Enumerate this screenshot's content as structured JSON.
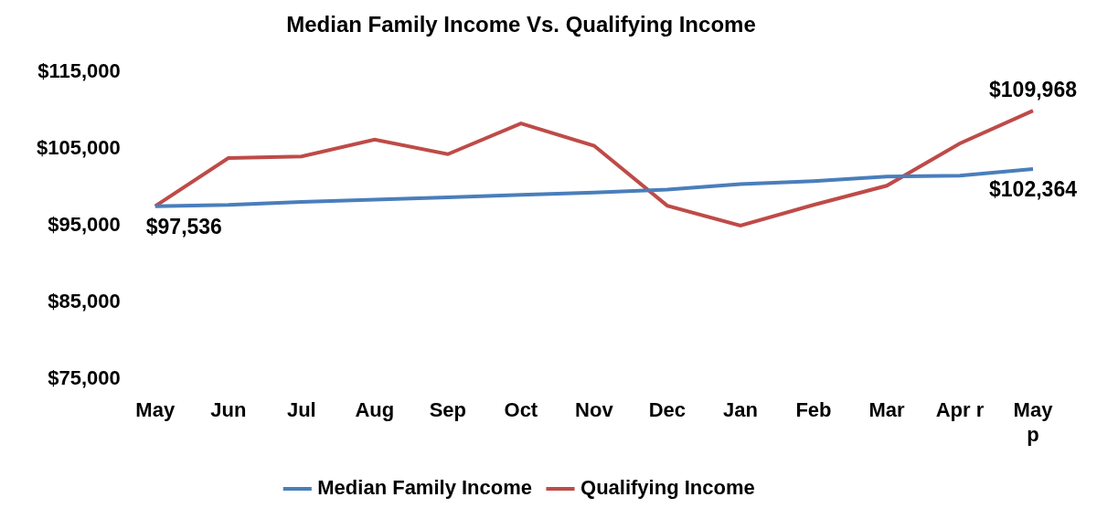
{
  "chart_data": {
    "type": "line",
    "title": "Median Family Income Vs. Qualifying Income",
    "categories": [
      "May",
      "Jun",
      "Jul",
      "Aug",
      "Sep",
      "Oct",
      "Nov",
      "Dec",
      "Jan",
      "Feb",
      "Mar",
      "Apr r",
      [
        "May",
        "p"
      ]
    ],
    "series": [
      {
        "name": "Median Family Income",
        "color": "#4a7ebb",
        "values": [
          97536,
          97700,
          98100,
          98400,
          98700,
          99000,
          99300,
          99700,
          100400,
          100800,
          101400,
          101500,
          102364
        ],
        "value_labels": [
          "$97,536",
          null,
          null,
          null,
          null,
          null,
          null,
          null,
          null,
          null,
          null,
          null,
          "$102,364"
        ]
      },
      {
        "name": "Qualifying Income",
        "color": "#be4b48",
        "values": [
          97536,
          103800,
          104000,
          106200,
          104300,
          108300,
          105400,
          97600,
          95000,
          97700,
          100200,
          105700,
          109968
        ],
        "value_labels": [
          null,
          null,
          null,
          null,
          null,
          null,
          null,
          null,
          null,
          null,
          null,
          null,
          "$109,968"
        ]
      }
    ],
    "ylim": [
      75000,
      115000
    ],
    "yticks": [
      {
        "value": 75000,
        "label": "$75,000"
      },
      {
        "value": 85000,
        "label": "$85,000"
      },
      {
        "value": 95000,
        "label": "$95,000"
      },
      {
        "value": 105000,
        "label": "$105,000"
      },
      {
        "value": 115000,
        "label": "$115,000"
      }
    ],
    "grid": false,
    "legend": "bottom",
    "data_labels": true
  }
}
